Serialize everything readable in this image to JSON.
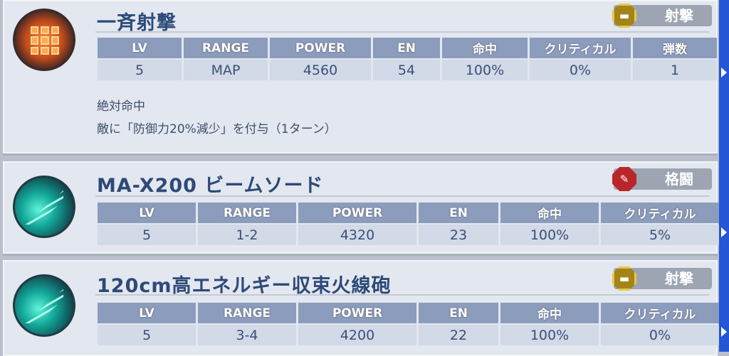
{
  "weapons": [
    {
      "name": "一斉射撃",
      "type": "射撃",
      "icon": "grid-target-icon",
      "headers": [
        "LV",
        "RANGE",
        "POWER",
        "EN",
        "命中",
        "クリティカル",
        "弾数"
      ],
      "values": [
        "5",
        "MAP",
        "4560",
        "54",
        "100%",
        "0%",
        "1"
      ],
      "description": [
        "絶対命中",
        "敵に「防御力20%減少」を付与（1ターン）"
      ]
    },
    {
      "name": "MA-X200 ビームソード",
      "type": "格闘",
      "icon": "beam-slash-icon",
      "headers": [
        "LV",
        "RANGE",
        "POWER",
        "EN",
        "命中",
        "クリティカル"
      ],
      "values": [
        "5",
        "1-2",
        "4320",
        "23",
        "100%",
        "5%"
      ]
    },
    {
      "name": "120cm高エネルギー収束火線砲",
      "type": "射撃",
      "icon": "beam-slash-icon",
      "headers": [
        "LV",
        "RANGE",
        "POWER",
        "EN",
        "命中",
        "クリティカル"
      ],
      "values": [
        "5",
        "3-4",
        "4200",
        "22",
        "100%",
        "0%"
      ]
    }
  ],
  "colors": {
    "accent": "#2456d6",
    "header": "#8c9cbc",
    "title": "#2d4a78"
  }
}
